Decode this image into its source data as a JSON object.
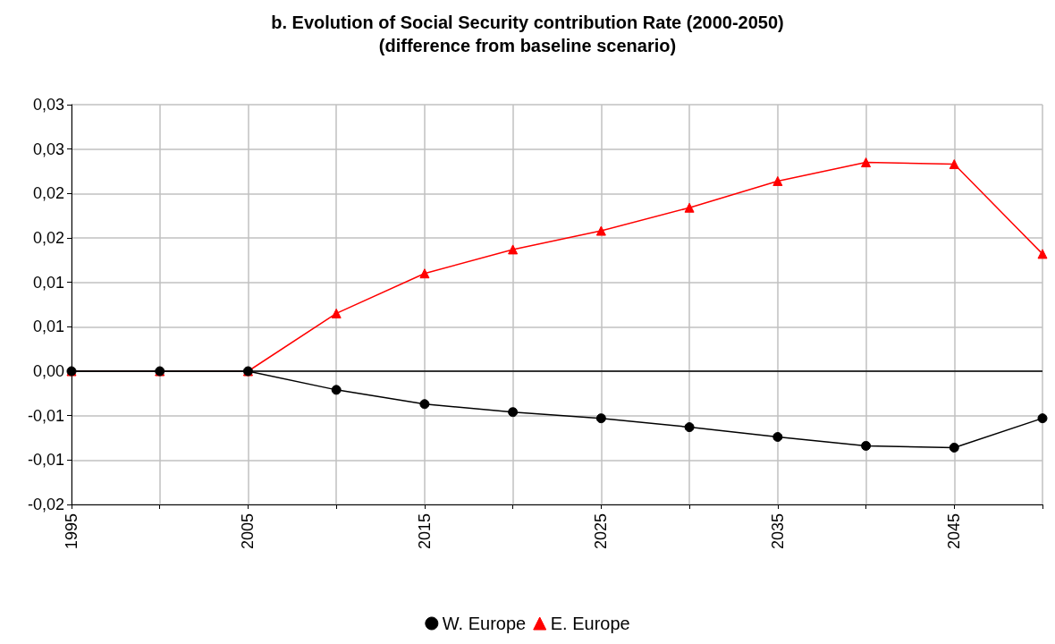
{
  "chart_data": {
    "type": "line",
    "title": "b. Evolution of Social Security contribution Rate (2000-2050)",
    "subtitle": "(difference from baseline scenario)",
    "x": [
      1995,
      2000,
      2005,
      2010,
      2015,
      2020,
      2025,
      2030,
      2035,
      2040,
      2045,
      2050
    ],
    "series": [
      {
        "name": "W. Europe",
        "color": "#000000",
        "marker": "circle",
        "values": [
          0,
          0,
          0,
          -0.0021,
          -0.0037,
          -0.0046,
          -0.0053,
          -0.0063,
          -0.0074,
          -0.0084,
          -0.0086,
          -0.0053
        ]
      },
      {
        "name": "E. Europe",
        "color": "#ff0000",
        "marker": "triangle",
        "values": [
          0,
          0,
          0,
          0.0065,
          0.011,
          0.0137,
          0.0158,
          0.0184,
          0.0214,
          0.0235,
          0.0233,
          0.0132
        ]
      }
    ],
    "xlim": [
      1995,
      2050
    ],
    "xticks": [
      1995,
      {
        "value": 2000,
        "label": null
      },
      2005,
      {
        "value": 2010,
        "label": null
      },
      2015,
      {
        "value": 2020,
        "label": null
      },
      2025,
      {
        "value": 2030,
        "label": null
      },
      2035,
      {
        "value": 2040,
        "label": null
      },
      2045,
      {
        "value": 2050,
        "label": null
      }
    ],
    "ylim": [
      -0.015,
      0.03
    ],
    "yticks": [
      {
        "value": -0.015,
        "label": "-0,02"
      },
      {
        "value": -0.01,
        "label": "-0,01"
      },
      {
        "value": -0.005,
        "label": "-0,01"
      },
      {
        "value": 0,
        "label": "0,00"
      },
      {
        "value": 0.005,
        "label": "0,01"
      },
      {
        "value": 0.01,
        "label": "0,01"
      },
      {
        "value": 0.015,
        "label": "0,02"
      },
      {
        "value": 0.02,
        "label": "0,02"
      },
      {
        "value": 0.025,
        "label": "0,03"
      },
      {
        "value": 0.03,
        "label": "0,03"
      }
    ],
    "ref_lines": [
      {
        "axis": "y",
        "value": 0,
        "color": "#000000"
      }
    ],
    "grid": true,
    "legend": "bottom",
    "line_style": "solid"
  }
}
